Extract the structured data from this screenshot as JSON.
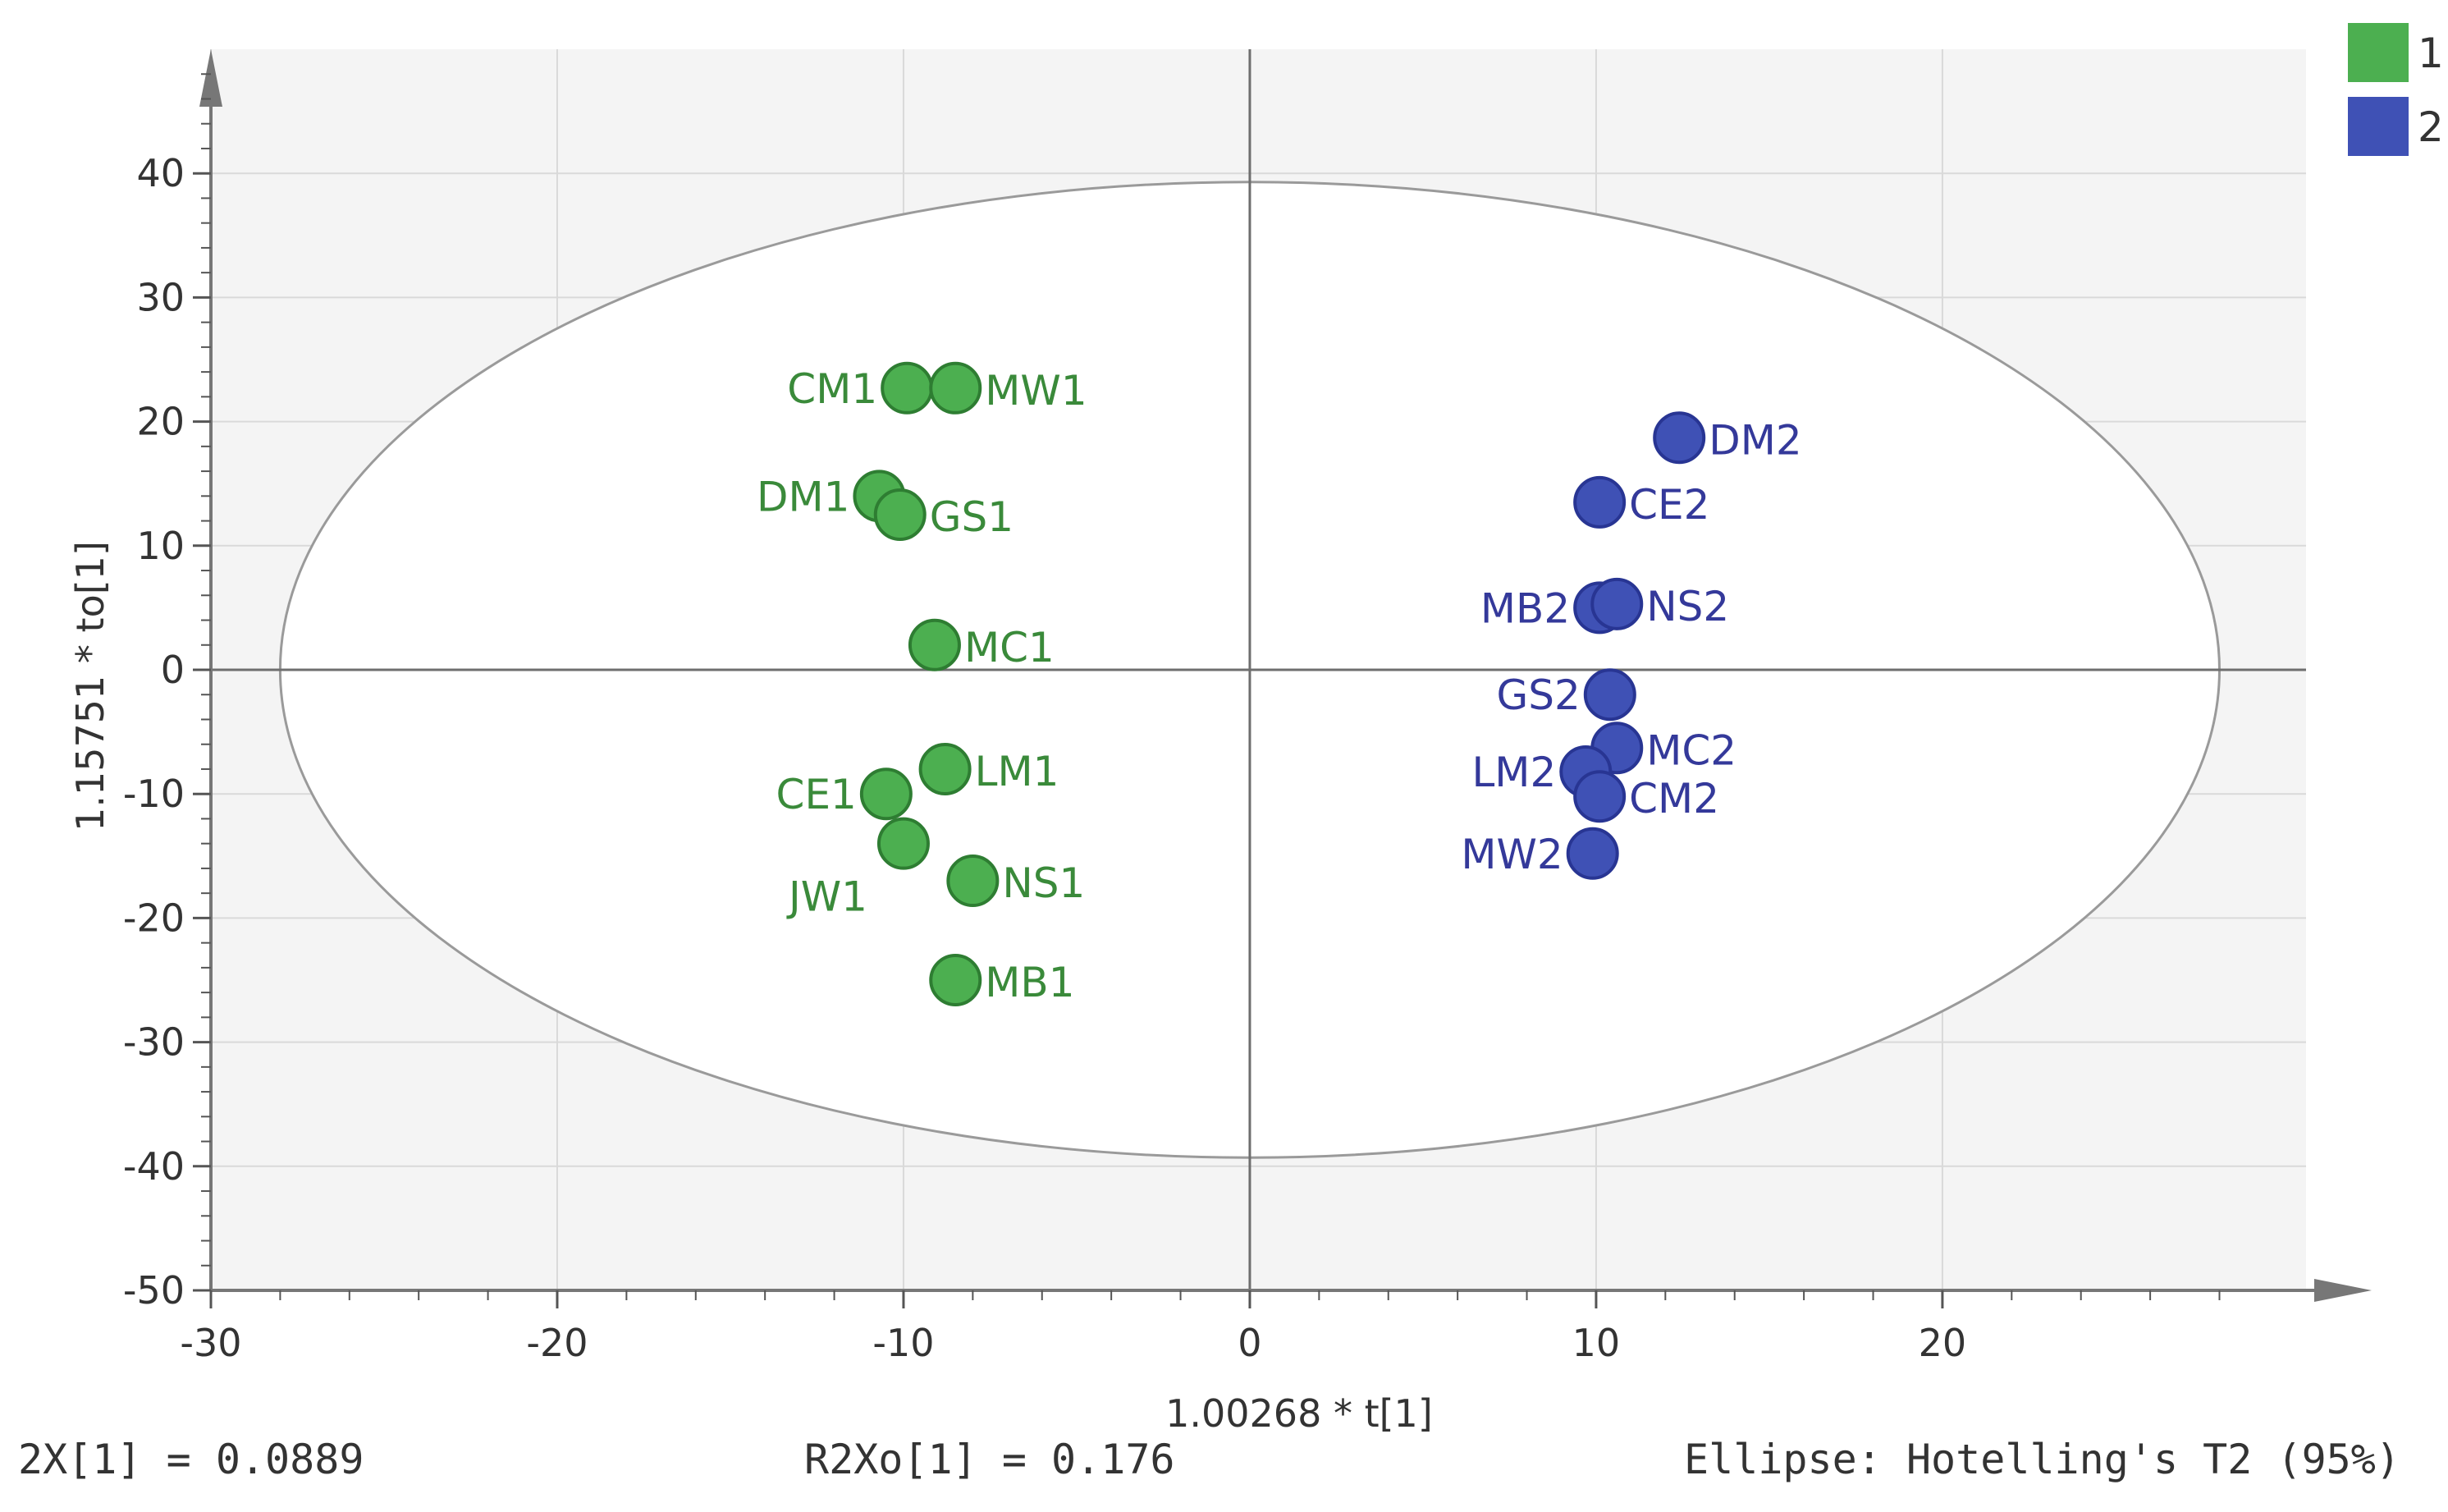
{
  "chart_data": {
    "type": "scatter",
    "xlabel": "1.00268 * t[1]",
    "ylabel": "1.15751 * to[1]",
    "xlim": [
      -30,
      30.5
    ],
    "ylim": [
      -50,
      50
    ],
    "x_ticks": [
      -30,
      -20,
      -10,
      0,
      10,
      20
    ],
    "y_ticks": [
      40,
      30,
      20,
      10,
      0,
      -10,
      -20,
      -30,
      -40,
      -50
    ],
    "grid": true,
    "legend_position": "top-right",
    "ellipse": {
      "cx": 0,
      "cy": 0,
      "rx": 28,
      "ry": 39.3
    },
    "series": [
      {
        "name": "1",
        "color": "#4caf50",
        "stroke": "#2e7d32",
        "label_color": "#3a8a3a",
        "points": [
          {
            "label": "CM1",
            "x": -9.9,
            "y": 22.7,
            "side": "left"
          },
          {
            "label": "MW1",
            "x": -8.5,
            "y": 22.7,
            "side": "right"
          },
          {
            "label": "DM1",
            "x": -10.7,
            "y": 14.0,
            "side": "left"
          },
          {
            "label": "GS1",
            "x": -10.1,
            "y": 12.5,
            "side": "right"
          },
          {
            "label": "MC1",
            "x": -9.1,
            "y": 2.0,
            "side": "right"
          },
          {
            "label": "LM1",
            "x": -8.8,
            "y": -8.0,
            "side": "right"
          },
          {
            "label": "CE1",
            "x": -10.5,
            "y": -10.0,
            "side": "left"
          },
          {
            "label": "JW1",
            "x": -10.0,
            "y": -14.0,
            "side": "below-left"
          },
          {
            "label": "NS1",
            "x": -8.0,
            "y": -17.0,
            "side": "right"
          },
          {
            "label": "MB1",
            "x": -8.5,
            "y": -25.0,
            "side": "right"
          }
        ]
      },
      {
        "name": "2",
        "color": "#3f51b5",
        "stroke": "#283593",
        "label_color": "#34399a",
        "points": [
          {
            "label": "DM2",
            "x": 12.4,
            "y": 18.7,
            "side": "right"
          },
          {
            "label": "CE2",
            "x": 10.1,
            "y": 13.5,
            "side": "right"
          },
          {
            "label": "MB2",
            "x": 10.1,
            "y": 5.0,
            "side": "left"
          },
          {
            "label": "NS2",
            "x": 10.6,
            "y": 5.3,
            "side": "right"
          },
          {
            "label": "GS2",
            "x": 10.4,
            "y": -2.0,
            "side": "left"
          },
          {
            "label": "MC2",
            "x": 10.6,
            "y": -6.3,
            "side": "right"
          },
          {
            "label": "LM2",
            "x": 9.7,
            "y": -8.2,
            "side": "left"
          },
          {
            "label": "CM2",
            "x": 10.1,
            "y": -10.2,
            "side": "right"
          },
          {
            "label": "MW2",
            "x": 9.9,
            "y": -14.8,
            "side": "left"
          }
        ]
      }
    ]
  },
  "footer": {
    "left": "2X[1] = 0.0889",
    "center": "R2Xo[1] = 0.176",
    "right": "Ellipse: Hotelling's T2 (95%)"
  }
}
